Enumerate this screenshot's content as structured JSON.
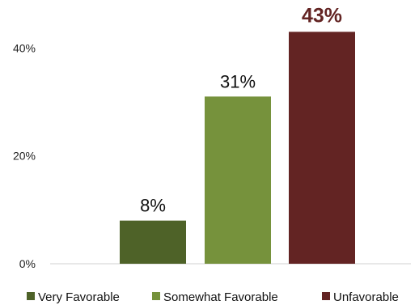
{
  "chart_data": {
    "type": "bar",
    "categories": [
      "Very Favorable",
      "Somewhat Favorable",
      "Unfavorable"
    ],
    "values": [
      8,
      31,
      43
    ],
    "data_labels": [
      "8%",
      "31%",
      "43%"
    ],
    "colors": [
      "#4e6228",
      "#76923c",
      "#632423"
    ],
    "y_ticks": [
      "0%",
      "20%",
      "40%"
    ],
    "ylim": [
      0,
      48
    ],
    "grid": false,
    "legend": {
      "position": "bottom",
      "entries": [
        "Very Favorable",
        "Somewhat Favorable",
        "Unfavorable"
      ]
    }
  }
}
